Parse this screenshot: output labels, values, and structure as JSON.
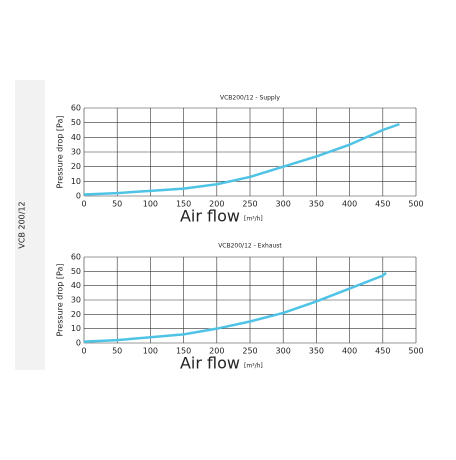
{
  "sidebar": {
    "label": "VCB 200/12"
  },
  "chart_data": [
    {
      "type": "line",
      "title": "VCB200/12 - Supply",
      "x_label": "Air flow",
      "x_unit": "[m³/h]",
      "y_label": "Pressure drop [Pa]",
      "x": [
        0,
        50,
        100,
        150,
        200,
        250,
        300,
        350,
        400,
        450,
        475
      ],
      "series": [
        {
          "name": "Supply",
          "color": "#4fc3e6",
          "values": [
            1,
            2,
            3.5,
            5,
            8,
            13,
            20,
            27,
            35,
            45,
            49
          ]
        }
      ],
      "xlim": [
        0,
        500
      ],
      "xticks": [
        0,
        50,
        100,
        150,
        200,
        250,
        300,
        350,
        400,
        450,
        500
      ],
      "ylim": [
        0,
        60
      ],
      "yticks": [
        0,
        10,
        20,
        30,
        40,
        50,
        60
      ],
      "grid": true
    },
    {
      "type": "line",
      "title": "VCB200/12 - Exhaust",
      "x_label": "Air flow",
      "x_unit": "[m³/h]",
      "y_label": "Pressure drop [Pa]",
      "x": [
        0,
        50,
        100,
        150,
        200,
        250,
        300,
        350,
        400,
        450,
        455
      ],
      "series": [
        {
          "name": "Exhaust",
          "color": "#4fc3e6",
          "values": [
            1,
            2,
            4,
            6,
            10,
            15,
            21,
            29,
            38,
            47,
            49
          ]
        }
      ],
      "xlim": [
        0,
        500
      ],
      "xticks": [
        0,
        50,
        100,
        150,
        200,
        250,
        300,
        350,
        400,
        450,
        500
      ],
      "ylim": [
        0,
        60
      ],
      "yticks": [
        0,
        10,
        20,
        30,
        40,
        50,
        60
      ],
      "grid": true
    }
  ]
}
